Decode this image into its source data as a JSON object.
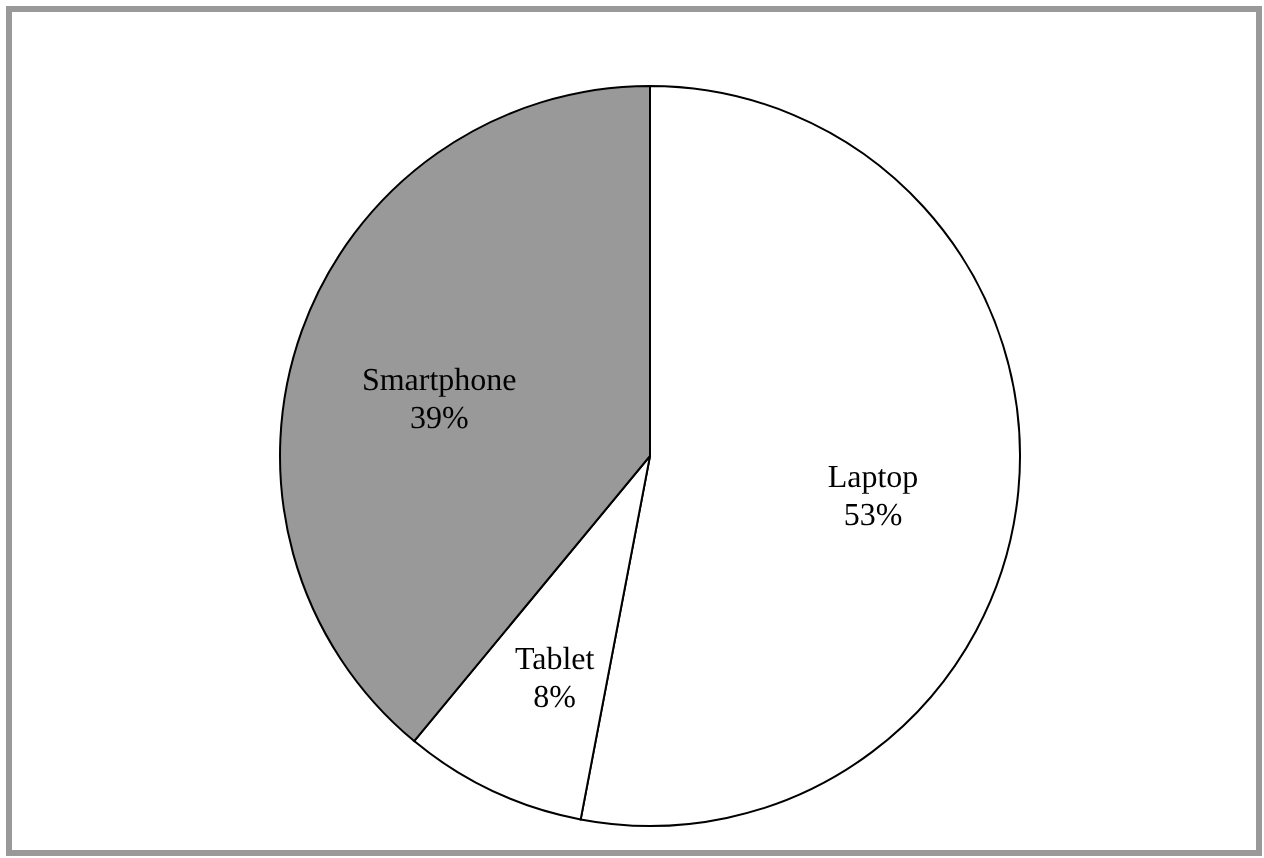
{
  "chart_data": {
    "type": "pie",
    "categories": [
      "Laptop",
      "Tablet",
      "Smartphone"
    ],
    "values": [
      53,
      8,
      39
    ],
    "colors": [
      "#ffffff",
      "#ffffff",
      "#999999"
    ],
    "value_labels": [
      "53%",
      "8%",
      "39%"
    ]
  }
}
